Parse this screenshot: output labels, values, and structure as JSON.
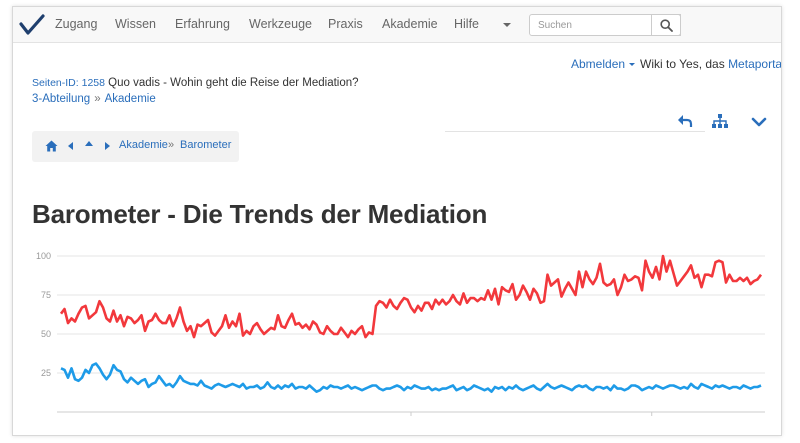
{
  "nav": {
    "items": [
      "Zugang",
      "Wissen",
      "Erfahrung",
      "Werkzeuge",
      "Praxis",
      "Akademie",
      "Hilfe"
    ],
    "search_placeholder": "Suchen"
  },
  "user": {
    "logout_label": "Abmelden",
    "site_prefix": "Wiki to Yes, das",
    "portal_link": "Metaportal"
  },
  "page": {
    "id_label": "Seiten-ID: 1258",
    "context_title": "Quo vadis - Wohin geht die Reise der Mediation?",
    "dept_link": "3-Abteilung",
    "dept_sep": "»",
    "section_link": "Akademie",
    "title": "Barometer - Die Trends der Mediation"
  },
  "breadcrumb": {
    "items": [
      "Akademie",
      "Barometer"
    ],
    "sep": "»"
  },
  "colors": {
    "accent": "#2a6ebb",
    "series_red": "#f2383c",
    "series_blue": "#1e9be8"
  },
  "icons": [
    "check-logo-icon",
    "search-icon",
    "reply-icon",
    "sitemap-icon",
    "chevron-down-icon",
    "home-icon",
    "caret-left-icon",
    "caret-up-icon",
    "caret-right-icon"
  ],
  "chart_data": {
    "type": "line",
    "ylim": [
      0,
      100
    ],
    "yticks": [
      100,
      75,
      50,
      25
    ],
    "grid": true,
    "series": [
      {
        "color": "#f2383c",
        "values": [
          63,
          66,
          57,
          60,
          58,
          63,
          67,
          68,
          60,
          62,
          64,
          71,
          67,
          60,
          58,
          65,
          58,
          62,
          55,
          61,
          60,
          57,
          59,
          62,
          52,
          58,
          59,
          63,
          59,
          57,
          57,
          62,
          55,
          60,
          67,
          58,
          52,
          55,
          48,
          56,
          55,
          57,
          59,
          51,
          49,
          52,
          55,
          62,
          54,
          58,
          55,
          63,
          49,
          52,
          50,
          55,
          57,
          53,
          50,
          52,
          54,
          53,
          62,
          55,
          54,
          59,
          63,
          56,
          57,
          54,
          56,
          53,
          58,
          56,
          51,
          50,
          55,
          52,
          50,
          50,
          54,
          51,
          48,
          52,
          50,
          53,
          55,
          48,
          51,
          50,
          68,
          71,
          70,
          67,
          72,
          68,
          66,
          70,
          73,
          72,
          67,
          64,
          68,
          65,
          70,
          70,
          66,
          72,
          69,
          72,
          69,
          71,
          75,
          71,
          69,
          76,
          70,
          73,
          73,
          71,
          73,
          72,
          78,
          72,
          79,
          69,
          80,
          78,
          77,
          82,
          72,
          75,
          81,
          77,
          72,
          79,
          76,
          70,
          71,
          88,
          81,
          83,
          85,
          74,
          79,
          83,
          79,
          75,
          90,
          80,
          90,
          85,
          82,
          86,
          95,
          83,
          81,
          82,
          85,
          75,
          80,
          88,
          84,
          85,
          87,
          86,
          78,
          97,
          90,
          86,
          93,
          85,
          100,
          90,
          97,
          89,
          81,
          84,
          87,
          90,
          94,
          86,
          88,
          80,
          88,
          88,
          87,
          96,
          97,
          96,
          83,
          88,
          84,
          84,
          86,
          84,
          86,
          82,
          84,
          85,
          88
        ]
      },
      {
        "color": "#1e9be8",
        "values": [
          28,
          27,
          22,
          28,
          21,
          20,
          22,
          27,
          25,
          30,
          31,
          28,
          24,
          21,
          24,
          30,
          27,
          26,
          21,
          19,
          22,
          20,
          18,
          20,
          21,
          16,
          18,
          19,
          23,
          20,
          17,
          18,
          16,
          19,
          23,
          20,
          19,
          18,
          18,
          17,
          20,
          17,
          16,
          15,
          17,
          18,
          17,
          16,
          17,
          18,
          17,
          16,
          18,
          15,
          16,
          16,
          17,
          15,
          16,
          19,
          16,
          15,
          17,
          15,
          17,
          16,
          18,
          15,
          16,
          16,
          15,
          17,
          15,
          13,
          14,
          16,
          15,
          17,
          16,
          16,
          15,
          16,
          17,
          15,
          16,
          15,
          14,
          15,
          16,
          17,
          17,
          15,
          14,
          15,
          15,
          16,
          17,
          16,
          14,
          16,
          15,
          17,
          16,
          15,
          15,
          16,
          14,
          15,
          14,
          15,
          15,
          16,
          17,
          14,
          15,
          16,
          14,
          15,
          17,
          16,
          15,
          14,
          15,
          13,
          16,
          15,
          16,
          14,
          16,
          15,
          17,
          15,
          14,
          15,
          16,
          17,
          15,
          14,
          16,
          18,
          16,
          15,
          16,
          17,
          16,
          15,
          14,
          16,
          17,
          16,
          17,
          15,
          14,
          16,
          16,
          15,
          16,
          14,
          17,
          15,
          15,
          14,
          15,
          17,
          17,
          16,
          14,
          15,
          16,
          15,
          17,
          16,
          15,
          16,
          17,
          17,
          16,
          15,
          16,
          15,
          18,
          16,
          15,
          18,
          17,
          16,
          15,
          17,
          16,
          17,
          16,
          15,
          16,
          16,
          15,
          17,
          16,
          15,
          16,
          16,
          17
        ]
      }
    ]
  }
}
